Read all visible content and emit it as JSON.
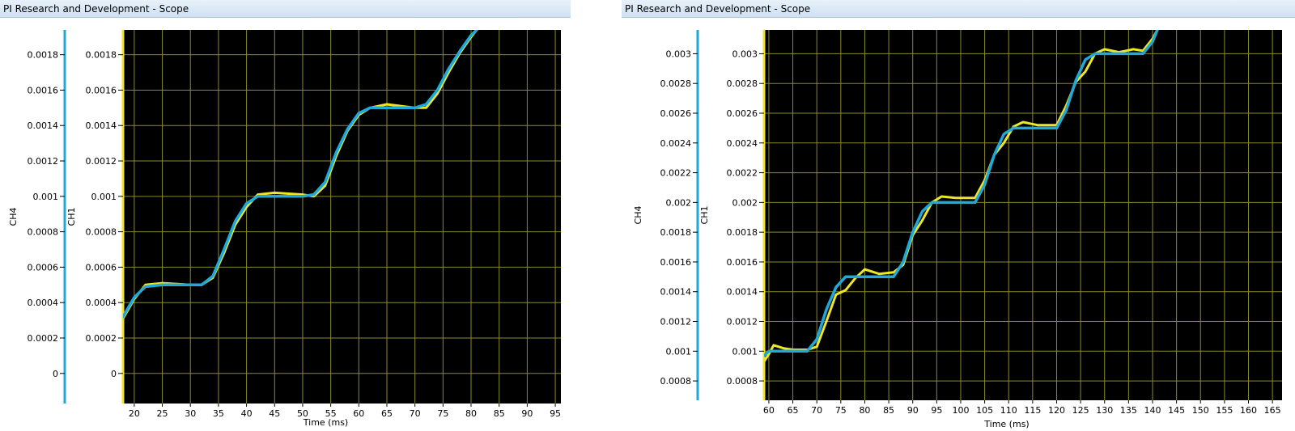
{
  "windows": [
    {
      "title": "PI Research and Development - Scope"
    },
    {
      "title": "PI Research and Development - Scope"
    }
  ],
  "colors": {
    "background": "#000000",
    "grid": "#8a8a2a",
    "ch1": "#f0e526",
    "ch4": "#1fa8d8"
  },
  "chart_data": [
    {
      "type": "line",
      "xlabel": "Time (ms)",
      "ylabels": [
        "CH4",
        "CH1"
      ],
      "xlim": [
        18,
        96
      ],
      "ylim": [
        -0.00017,
        0.00194
      ],
      "grid": true,
      "x_ticks": [
        20,
        25,
        30,
        35,
        40,
        45,
        50,
        55,
        60,
        65,
        70,
        75,
        80,
        85,
        90,
        95
      ],
      "y_ticks": [
        0,
        0.0002,
        0.0004,
        0.0006,
        0.0008,
        0.001,
        0.0012,
        0.0014,
        0.0016,
        0.0018
      ],
      "y_tick_labels": [
        "0",
        "0.0002",
        "0.0004",
        "0.0006",
        "0.0008",
        "0.001",
        "0.0012",
        "0.0014",
        "0.0016",
        "0.0018"
      ],
      "series": [
        {
          "name": "CH4",
          "x": [
            18,
            20,
            22,
            25,
            30,
            32,
            34,
            36,
            38,
            40,
            42,
            45,
            50,
            52,
            54,
            56,
            58,
            60,
            62,
            65,
            70,
            72,
            74,
            76,
            78,
            80,
            81
          ],
          "y": [
            0.00032,
            0.00043,
            0.00049,
            0.0005,
            0.0005,
            0.0005,
            0.00055,
            0.0007,
            0.00086,
            0.00096,
            0.001,
            0.001,
            0.001,
            0.00101,
            0.00108,
            0.00125,
            0.00138,
            0.00147,
            0.0015,
            0.0015,
            0.0015,
            0.00152,
            0.0016,
            0.00172,
            0.00182,
            0.00191,
            0.00194
          ]
        },
        {
          "name": "CH1",
          "x": [
            18,
            20,
            22,
            25,
            30,
            32,
            34,
            36,
            38,
            40,
            42,
            45,
            50,
            52,
            54,
            56,
            58,
            60,
            62,
            65,
            70,
            72,
            74,
            76,
            78,
            80,
            81
          ],
          "y": [
            0.00031,
            0.00042,
            0.0005,
            0.00051,
            0.0005,
            0.0005,
            0.00054,
            0.00068,
            0.00084,
            0.00094,
            0.00101,
            0.00102,
            0.00101,
            0.001,
            0.00106,
            0.00123,
            0.00137,
            0.00146,
            0.0015,
            0.00152,
            0.0015,
            0.0015,
            0.00158,
            0.0017,
            0.00181,
            0.0019,
            0.00194
          ]
        }
      ]
    },
    {
      "type": "line",
      "xlabel": "Time (ms)",
      "ylabels": [
        "CH4",
        "CH1"
      ],
      "xlim": [
        59,
        167
      ],
      "ylim": [
        0.00067,
        0.00316
      ],
      "grid": true,
      "x_ticks": [
        60,
        65,
        70,
        75,
        80,
        85,
        90,
        95,
        100,
        105,
        110,
        115,
        120,
        125,
        130,
        135,
        140,
        145,
        150,
        155,
        160,
        165
      ],
      "y_ticks": [
        0.0008,
        0.001,
        0.0012,
        0.0014,
        0.0016,
        0.0018,
        0.002,
        0.0022,
        0.0024,
        0.0026,
        0.0028,
        0.003
      ],
      "y_tick_labels": [
        "0.0008",
        "0.001",
        "0.0012",
        "0.0014",
        "0.0016",
        "0.0018",
        "0.002",
        "0.0022",
        "0.0024",
        "0.0026",
        "0.0028",
        "0.003"
      ],
      "series": [
        {
          "name": "CH4",
          "x": [
            59,
            60,
            62,
            68,
            70,
            72,
            74,
            76,
            86,
            88,
            90,
            92,
            94,
            103,
            105,
            107,
            109,
            111,
            120,
            122,
            124,
            126,
            128,
            138,
            140,
            141
          ],
          "y": [
            0.00097,
            0.001,
            0.001,
            0.001,
            0.00108,
            0.00128,
            0.00143,
            0.0015,
            0.0015,
            0.0016,
            0.0018,
            0.00194,
            0.002,
            0.002,
            0.00212,
            0.00232,
            0.00246,
            0.0025,
            0.0025,
            0.00262,
            0.00282,
            0.00296,
            0.003,
            0.003,
            0.00308,
            0.00316
          ]
        },
        {
          "name": "CH1",
          "x": [
            59,
            60,
            61,
            63,
            65,
            68,
            70,
            72,
            74,
            76,
            78,
            80,
            83,
            86,
            88,
            90,
            92,
            94,
            96,
            99,
            103,
            105,
            107,
            109,
            111,
            113,
            116,
            120,
            122,
            124,
            126,
            128,
            130,
            133,
            136,
            138,
            140,
            141
          ],
          "y": [
            0.00093,
            0.00098,
            0.00104,
            0.00102,
            0.00101,
            0.00101,
            0.00103,
            0.0012,
            0.00138,
            0.00141,
            0.00149,
            0.00155,
            0.00152,
            0.00153,
            0.00158,
            0.00178,
            0.00188,
            0.002,
            0.00204,
            0.00203,
            0.00203,
            0.00215,
            0.00232,
            0.0024,
            0.00251,
            0.00254,
            0.00252,
            0.00252,
            0.00265,
            0.00281,
            0.00288,
            0.003,
            0.00303,
            0.00301,
            0.00303,
            0.00302,
            0.0031,
            0.00316
          ]
        }
      ]
    }
  ]
}
